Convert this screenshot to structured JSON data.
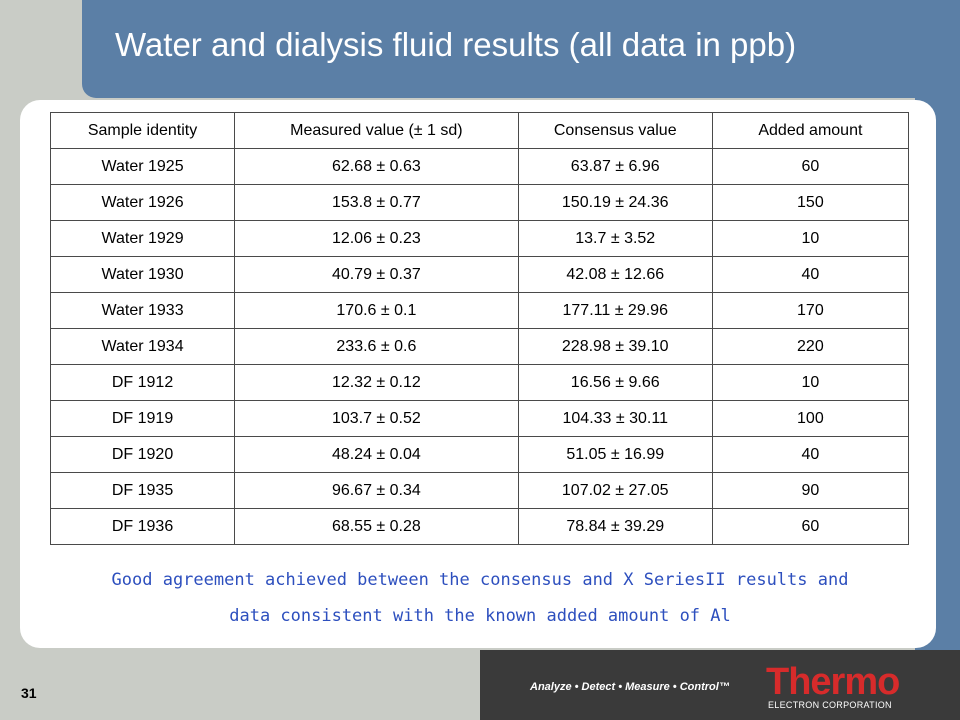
{
  "slide": {
    "title": "Water and dialysis fluid results (all data in ppb)",
    "number": "31"
  },
  "table": {
    "headers": [
      "Sample identity",
      "Measured value (± 1 sd)",
      "Consensus value",
      "Added amount"
    ],
    "rows": [
      [
        "Water 1925",
        "62.68 ± 0.63",
        "63.87 ± 6.96",
        "60"
      ],
      [
        "Water 1926",
        "153.8 ± 0.77",
        "150.19 ± 24.36",
        "150"
      ],
      [
        "Water 1929",
        "12.06 ± 0.23",
        "13.7 ± 3.52",
        "10"
      ],
      [
        "Water 1930",
        "40.79 ± 0.37",
        "42.08 ± 12.66",
        "40"
      ],
      [
        "Water 1933",
        "170.6 ± 0.1",
        "177.11 ± 29.96",
        "170"
      ],
      [
        "Water 1934",
        "233.6 ± 0.6",
        "228.98 ± 39.10",
        "220"
      ],
      [
        "DF 1912",
        "12.32 ± 0.12",
        "16.56 ± 9.66",
        "10"
      ],
      [
        "DF 1919",
        "103.7 ± 0.52",
        "104.33 ± 30.11",
        "100"
      ],
      [
        "DF 1920",
        "48.24 ± 0.04",
        "51.05 ± 16.99",
        "40"
      ],
      [
        "DF 1935",
        "96.67 ± 0.34",
        "107.02 ± 27.05",
        "90"
      ],
      [
        "DF 1936",
        "68.55 ± 0.28",
        "78.84 ± 39.29",
        "60"
      ]
    ]
  },
  "note": {
    "line1": "Good agreement achieved between the consensus and X SeriesII results and",
    "line2": "data consistent with the known added amount of Al"
  },
  "footer": {
    "tagline": "Analyze • Detect • Measure • Control™",
    "logo_word": "Thermo",
    "logo_sub": "ELECTRON CORPORATION"
  },
  "colors": {
    "band": "#5b7fa6",
    "note": "#2d4fbe",
    "logo": "#d72b2b"
  }
}
